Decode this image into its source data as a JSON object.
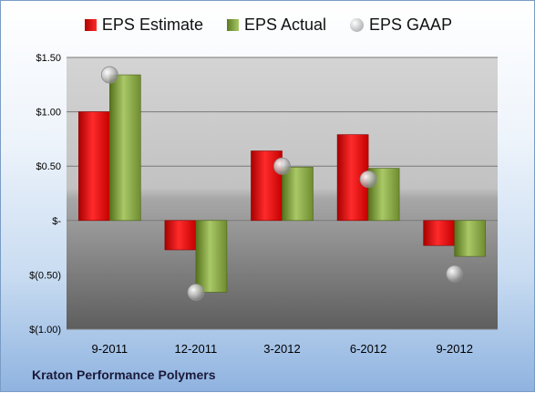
{
  "chart_data": {
    "type": "bar",
    "categories": [
      "9-2011",
      "12-2011",
      "3-2012",
      "6-2012",
      "9-2012"
    ],
    "series": [
      {
        "name": "EPS Estimate",
        "kind": "bar",
        "color": "#d81c1c",
        "values": [
          1.0,
          -0.27,
          0.64,
          0.79,
          -0.23
        ]
      },
      {
        "name": "EPS Actual",
        "kind": "bar",
        "color": "#86a94a",
        "values": [
          1.34,
          -0.66,
          0.49,
          0.48,
          -0.33
        ]
      },
      {
        "name": "EPS GAAP",
        "kind": "point",
        "color": "#b8b8b8",
        "values": [
          1.34,
          -0.66,
          0.5,
          0.38,
          -0.49
        ]
      }
    ],
    "ylim": [
      -1.0,
      1.5
    ],
    "yticks": [
      1.5,
      1.0,
      0.5,
      0.0,
      -0.5,
      -1.0
    ],
    "ytick_labels": [
      "$1.50",
      "$1.00",
      "$0.50",
      "$-",
      "$(0.50)",
      "$(1.00)"
    ],
    "grid": true,
    "legend_position": "top"
  },
  "footer": {
    "company": "Kraton Performance Polymers"
  }
}
